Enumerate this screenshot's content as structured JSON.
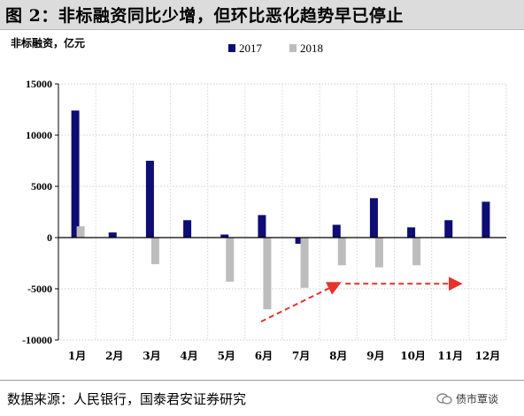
{
  "header": {
    "title": "图 2：非标融资同比少增，但环比恶化趋势早已停止"
  },
  "unit_label": "非标融资，亿元",
  "footer": {
    "source": "数据来源：人民银行，国泰君安证券研究",
    "watermark": "债市覃谈"
  },
  "colors": {
    "series_2017": "#0d0d73",
    "series_2018": "#bdbdbd",
    "arrow": "#e8322a"
  },
  "chart_data": {
    "type": "bar",
    "title": "图 2：非标融资同比少增，但环比恶化趋势早已停止",
    "ylabel": "非标融资，亿元",
    "xlabel": "",
    "categories": [
      "1月",
      "2月",
      "3月",
      "4月",
      "5月",
      "6月",
      "7月",
      "8月",
      "9月",
      "10月",
      "11月",
      "12月"
    ],
    "series": [
      {
        "name": "2017",
        "color": "#0d0d73",
        "values": [
          12400,
          500,
          7500,
          1700,
          300,
          2200,
          -600,
          1250,
          3850,
          1000,
          1700,
          3500
        ]
      },
      {
        "name": "2018",
        "color": "#bdbdbd",
        "values": [
          1100,
          null,
          -2600,
          null,
          -4300,
          -7000,
          -4900,
          -2700,
          -2900,
          -2700,
          null,
          null
        ]
      }
    ],
    "ylim": [
      -10000,
      15000
    ],
    "yticks": [
      -10000,
      -5000,
      0,
      5000,
      10000,
      15000
    ],
    "ytick_labels": [
      "-10000",
      "-5000",
      "0",
      "5000",
      "10000",
      "15000"
    ],
    "grid": true,
    "legend": "top-center",
    "annotations": [
      {
        "type": "dashed-arrow",
        "from": {
          "x": "6月",
          "y": -8200
        },
        "to": {
          "x": "8月",
          "y": -4500
        }
      },
      {
        "type": "dashed-arrow",
        "from": {
          "x": "8月",
          "y": -4500
        },
        "to": {
          "x": "11月",
          "y": -4500
        }
      }
    ]
  }
}
